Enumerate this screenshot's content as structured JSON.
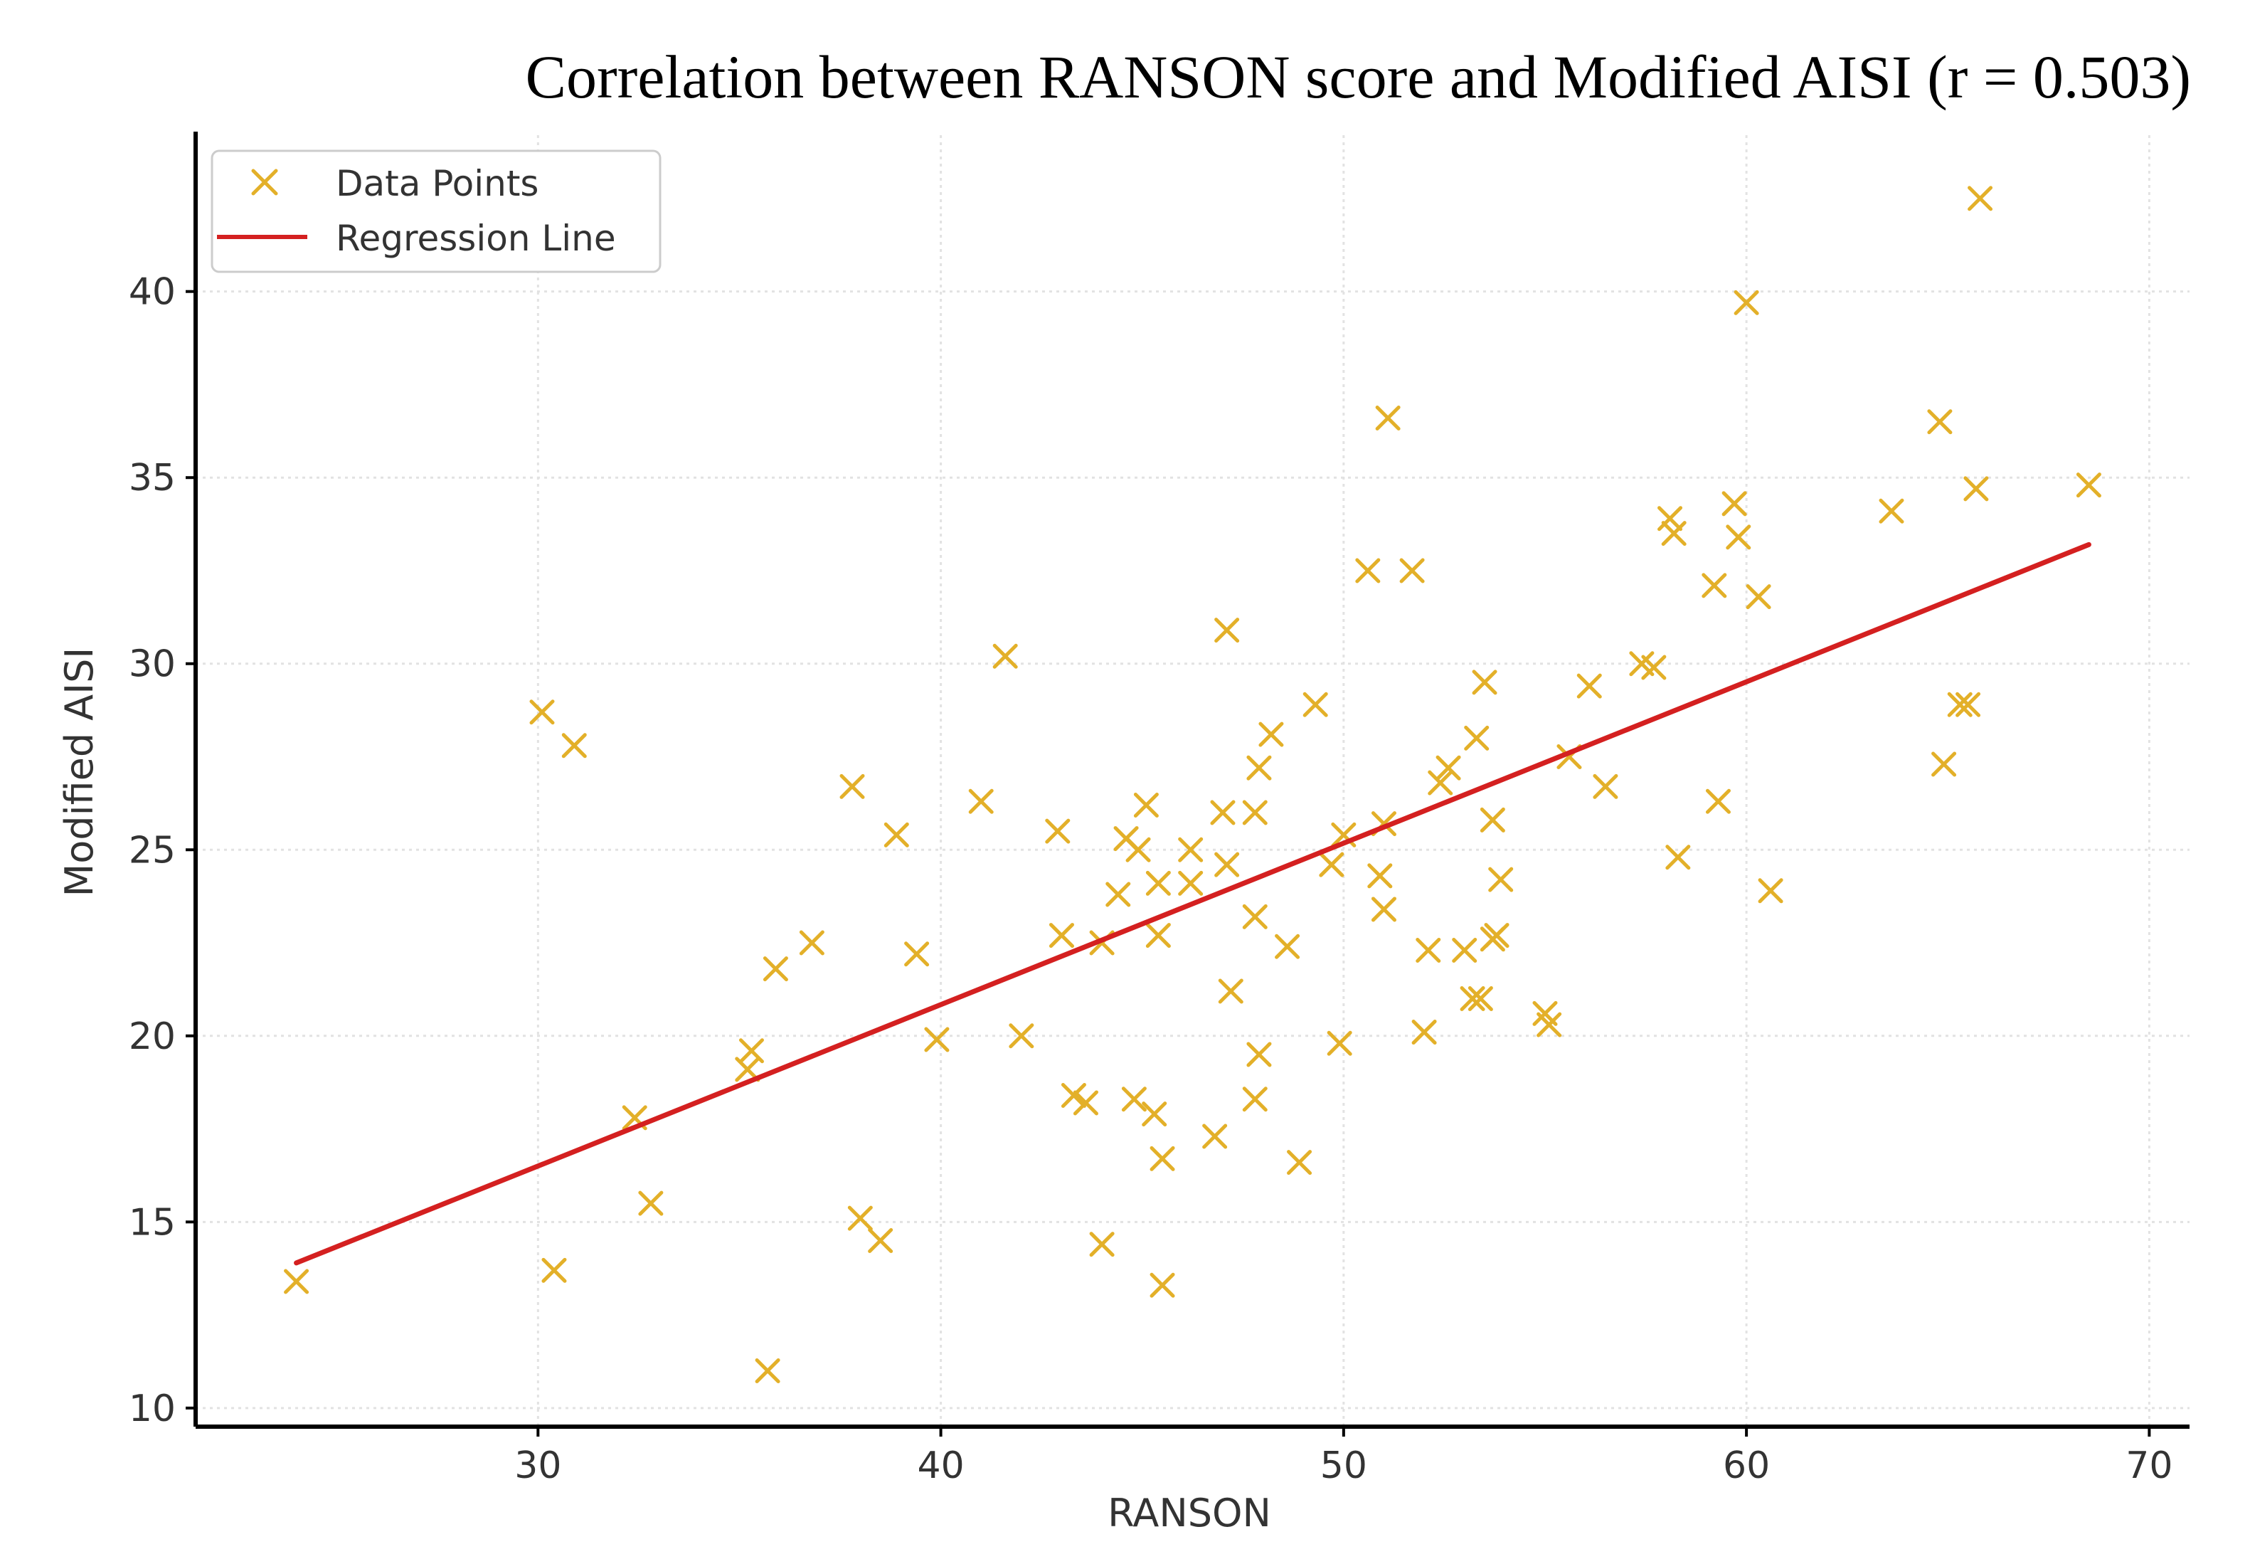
{
  "chart_data": {
    "type": "scatter",
    "title": "Correlation  between  RANSON score and Modified AISI (r = 0.503)",
    "xlabel": "RANSON",
    "ylabel": "Modified AISI",
    "xlim": [
      21.5,
      71
    ],
    "ylim": [
      9.5,
      44.2
    ],
    "xticks": [
      30,
      40,
      50,
      60,
      70
    ],
    "yticks": [
      10,
      15,
      20,
      25,
      30,
      35,
      40
    ],
    "grid": true,
    "legend_position": "top-left",
    "legend": [
      {
        "label": "Data Points",
        "marker": "x",
        "color": "#e3b029"
      },
      {
        "label": "Regression Line",
        "marker": "line",
        "color": "#d42020"
      }
    ],
    "series": [
      {
        "name": "Data Points",
        "marker": "x",
        "color": "#e3b029",
        "points": [
          [
            24.0,
            13.4
          ],
          [
            30.1,
            28.7
          ],
          [
            30.9,
            27.8
          ],
          [
            30.4,
            13.7
          ],
          [
            32.4,
            17.8
          ],
          [
            32.8,
            15.5
          ],
          [
            35.3,
            19.6
          ],
          [
            35.2,
            19.1
          ],
          [
            35.9,
            21.8
          ],
          [
            36.8,
            22.5
          ],
          [
            35.7,
            11.0
          ],
          [
            37.8,
            26.7
          ],
          [
            38.0,
            15.1
          ],
          [
            38.5,
            14.5
          ],
          [
            38.9,
            25.4
          ],
          [
            39.4,
            22.2
          ],
          [
            39.9,
            19.9
          ],
          [
            41.0,
            26.3
          ],
          [
            41.6,
            30.2
          ],
          [
            42.0,
            20.0
          ],
          [
            42.9,
            25.5
          ],
          [
            43.0,
            22.7
          ],
          [
            43.3,
            18.4
          ],
          [
            43.6,
            18.2
          ],
          [
            44.0,
            22.5
          ],
          [
            44.0,
            14.4
          ],
          [
            44.4,
            23.8
          ],
          [
            44.6,
            25.3
          ],
          [
            44.8,
            18.3
          ],
          [
            44.9,
            25.0
          ],
          [
            45.1,
            26.2
          ],
          [
            45.3,
            17.9
          ],
          [
            45.4,
            24.1
          ],
          [
            45.4,
            22.7
          ],
          [
            45.5,
            16.7
          ],
          [
            45.5,
            13.3
          ],
          [
            46.2,
            25.0
          ],
          [
            46.2,
            24.1
          ],
          [
            46.8,
            17.3
          ],
          [
            47.0,
            26.0
          ],
          [
            47.1,
            24.6
          ],
          [
            47.1,
            30.9
          ],
          [
            47.2,
            21.2
          ],
          [
            47.8,
            23.2
          ],
          [
            47.8,
            26.0
          ],
          [
            47.8,
            18.3
          ],
          [
            47.9,
            19.5
          ],
          [
            47.9,
            27.2
          ],
          [
            48.2,
            28.1
          ],
          [
            48.6,
            22.4
          ],
          [
            48.9,
            16.6
          ],
          [
            49.3,
            28.9
          ],
          [
            49.7,
            24.6
          ],
          [
            49.9,
            19.8
          ],
          [
            50.0,
            25.4
          ],
          [
            50.6,
            32.5
          ],
          [
            50.9,
            24.3
          ],
          [
            51.0,
            23.4
          ],
          [
            51.0,
            25.7
          ],
          [
            51.1,
            36.6
          ],
          [
            51.7,
            32.5
          ],
          [
            52.0,
            20.1
          ],
          [
            52.1,
            22.3
          ],
          [
            52.4,
            26.8
          ],
          [
            52.6,
            27.2
          ],
          [
            53.0,
            22.3
          ],
          [
            53.2,
            21.0
          ],
          [
            53.3,
            28.0
          ],
          [
            53.4,
            21.0
          ],
          [
            53.5,
            29.5
          ],
          [
            53.7,
            22.6
          ],
          [
            53.7,
            25.8
          ],
          [
            53.8,
            22.7
          ],
          [
            53.9,
            24.2
          ],
          [
            55.0,
            20.6
          ],
          [
            55.1,
            20.3
          ],
          [
            55.6,
            27.5
          ],
          [
            56.1,
            29.4
          ],
          [
            56.5,
            26.7
          ],
          [
            57.4,
            30.0
          ],
          [
            57.7,
            29.9
          ],
          [
            58.1,
            33.9
          ],
          [
            58.2,
            33.5
          ],
          [
            58.3,
            24.8
          ],
          [
            59.2,
            32.1
          ],
          [
            59.3,
            26.3
          ],
          [
            59.7,
            34.3
          ],
          [
            59.8,
            33.4
          ],
          [
            60.0,
            39.7
          ],
          [
            60.3,
            31.8
          ],
          [
            60.6,
            23.9
          ],
          [
            63.6,
            34.1
          ],
          [
            64.8,
            36.5
          ],
          [
            64.9,
            27.3
          ],
          [
            65.3,
            28.9
          ],
          [
            65.5,
            28.9
          ],
          [
            65.7,
            34.7
          ],
          [
            65.8,
            42.5
          ],
          [
            68.5,
            34.8
          ]
        ]
      },
      {
        "name": "Regression Line",
        "type": "line",
        "color": "#d42020",
        "x": [
          24.0,
          68.5
        ],
        "y": [
          13.9,
          33.2
        ]
      }
    ]
  }
}
